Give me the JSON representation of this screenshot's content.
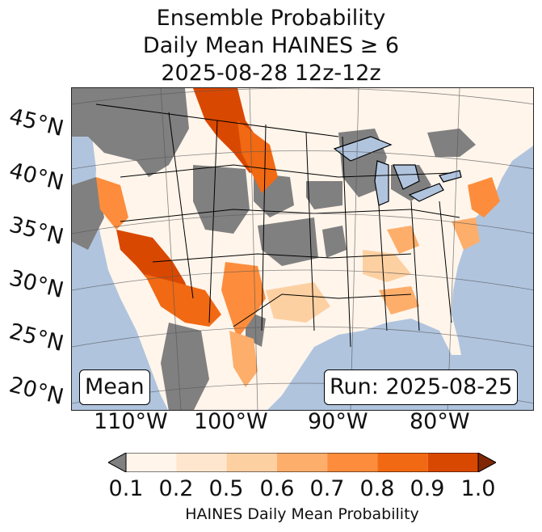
{
  "title": {
    "line1": "Ensemble Probability",
    "line2": "Daily Mean HAINES ≥ 6",
    "line3": "2025-08-28 12z-12z"
  },
  "map": {
    "colors": {
      "ocean": "#b0c4de",
      "missing": "#808080",
      "land_low": "#fff5eb"
    },
    "latitude_labels": [
      "45°N",
      "40°N",
      "35°N",
      "30°N",
      "25°N",
      "20°N"
    ],
    "longitude_labels": [
      "110°W",
      "100°W",
      "90°W",
      "80°W"
    ],
    "mean_label": "Mean",
    "run_label": "Run: 2025-08-25"
  },
  "colorbar": {
    "ticks": [
      "0.1",
      "0.2",
      "0.5",
      "0.6",
      "0.7",
      "0.8",
      "0.9",
      "1.0"
    ],
    "colors": [
      "#fff5eb",
      "#fee6ce",
      "#fdd0a2",
      "#fdae6b",
      "#fd8d3c",
      "#f16913",
      "#d94801",
      "#7f2704"
    ],
    "under_color": "#808080",
    "label": "HAINES Daily Mean Probability"
  }
}
